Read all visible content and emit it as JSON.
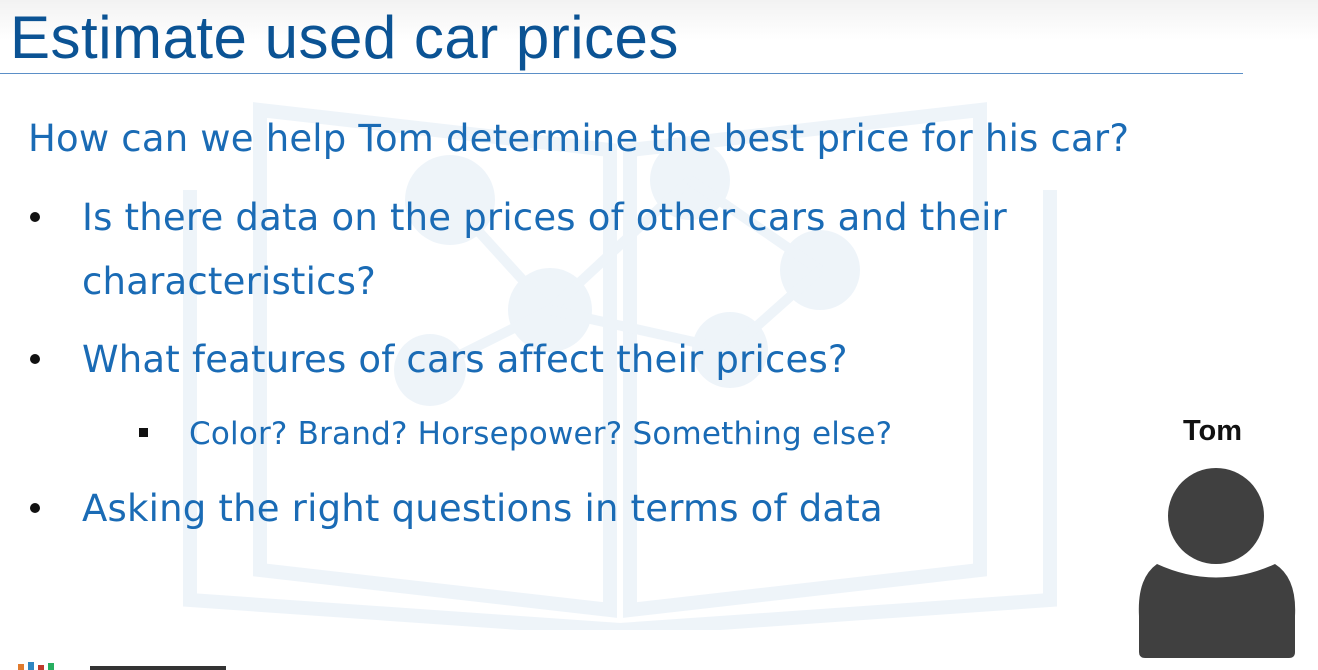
{
  "slide": {
    "title": "Estimate used car prices",
    "question": "How can we help Tom determine the best price for his car?",
    "bullets": [
      {
        "line1": "Is there data on the prices of other cars and their",
        "line2": "characteristics?"
      },
      {
        "line1": "What features of cars affect their prices?"
      },
      {
        "line1": "Asking the right questions in terms of data"
      }
    ],
    "sub_bullet": "Color? Brand? Horsepower? Something else?"
  },
  "person": {
    "name": "Tom",
    "icon": "person-silhouette-icon"
  },
  "colors": {
    "title": "#0b5394",
    "body_text": "#1a6bb5",
    "rule": "#5b8fc7",
    "icon_fill": "#404040"
  }
}
